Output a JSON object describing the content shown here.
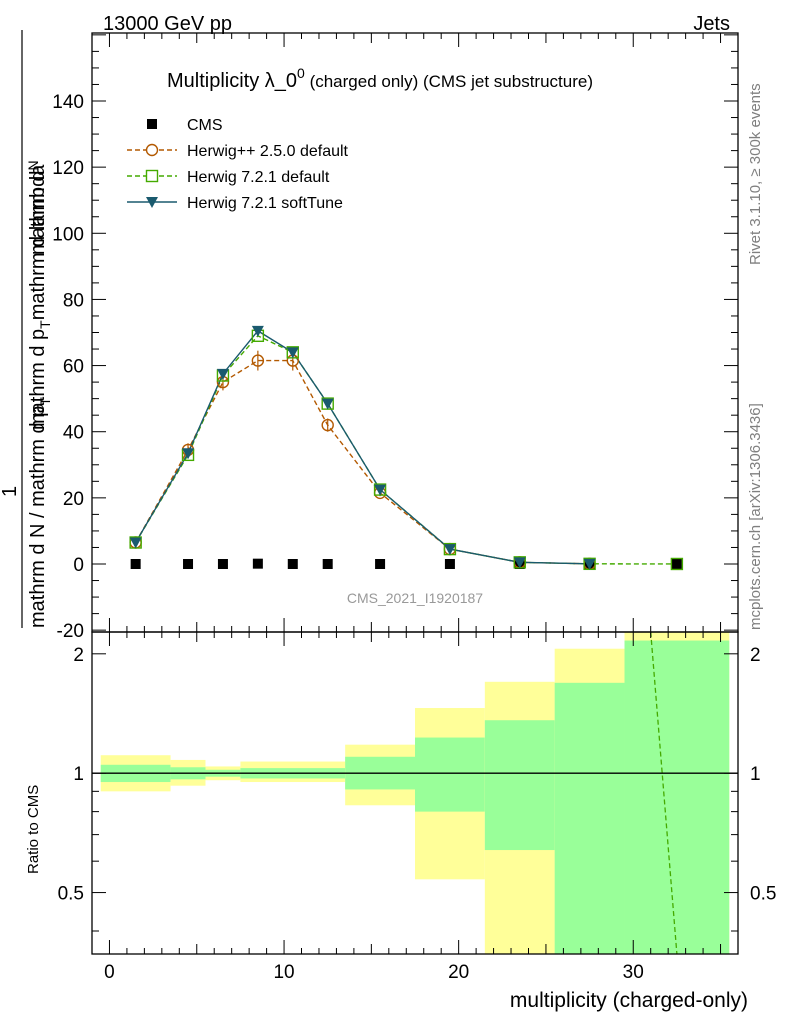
{
  "header": {
    "left": "13000 GeV pp",
    "right": "Jets"
  },
  "side": {
    "rivet": "Rivet 3.1.10, ≥ 300k events",
    "mcplots": "mcplots.cern.ch [arXiv:1306.3436]"
  },
  "chart_data": {
    "type": "line",
    "title_main": "Multiplicity λ_0",
    "title_sup": "0",
    "title_small": " (charged only) (CMS jet substructure)",
    "analysis_id": "CMS_2021_I1920187",
    "ylabel_top": "mathrm d",
    "ylabel_top_tail": "N",
    "ylabel_mid": "mathrm d p",
    "ylabel_mid_sub": "T",
    "ylabel_mid_tail": "mathrm d lambda",
    "ylabel_one": "1",
    "ylabel_bottom": "mathrm d N / mathrm d p",
    "ylabel_bottom_sub": "T",
    "ratio_ylabel": "Ratio to CMS",
    "xlabel": "multiplicity (charged-only)",
    "xlim": [
      -1,
      36
    ],
    "ylim": [
      -20,
      160
    ],
    "ratio_ylim": [
      0.35,
      2.27
    ],
    "x_ticks": [
      0,
      10,
      20,
      30
    ],
    "y_ticks": [
      -20,
      0,
      20,
      40,
      60,
      80,
      100,
      120,
      140
    ],
    "ratio_ticks": [
      0.5,
      1,
      2
    ],
    "series": [
      {
        "name": "CMS",
        "style": "data",
        "color": "#000000",
        "x": [
          1.5,
          4.5,
          6.5,
          8.5,
          10.5,
          12.5,
          15.5,
          19.5,
          23.5,
          27.5,
          32.5
        ],
        "y": [
          0,
          0,
          0,
          0.1,
          0,
          0,
          0,
          0,
          0,
          0,
          0
        ]
      },
      {
        "name": "Herwig++ 2.5.0 default",
        "style": "circle-dashed",
        "color": "#b35900",
        "x": [
          1.5,
          4.5,
          6.5,
          8.5,
          10.5,
          12.5,
          15.5,
          19.5,
          23.5,
          27.5
        ],
        "y": [
          6.5,
          34.5,
          55,
          61.5,
          61.5,
          42,
          21.5,
          4.5,
          0.5,
          0.05
        ],
        "err": [
          0.5,
          2.0,
          2.5,
          3.0,
          3.0,
          2.0,
          1.0,
          0.5,
          0.1,
          0.05
        ]
      },
      {
        "name": "Herwig 7.2.1 default",
        "style": "square-dashed",
        "color": "#44aa00",
        "x": [
          1.5,
          4.5,
          6.5,
          8.5,
          10.5,
          12.5,
          15.5,
          19.5,
          23.5,
          27.5,
          32.5
        ],
        "y": [
          6.5,
          33,
          57,
          69,
          64,
          48.5,
          22.5,
          4.5,
          0.5,
          0.05,
          0.01
        ]
      },
      {
        "name": "Herwig 7.2.1 softTune",
        "style": "triangle-solid",
        "color": "#1a5a6e",
        "x": [
          1.5,
          4.5,
          6.5,
          8.5,
          10.5,
          12.5,
          15.5,
          19.5,
          23.5,
          27.5
        ],
        "y": [
          6.5,
          33.5,
          57.5,
          70.5,
          64,
          48.5,
          22.5,
          4.5,
          0.5,
          0.05
        ]
      }
    ],
    "ratio_bands": [
      {
        "x0": -0.5,
        "x1": 3.5,
        "in_lo": 0.95,
        "in_hi": 1.05,
        "out_lo": 0.9,
        "out_hi": 1.11
      },
      {
        "x0": 3.5,
        "x1": 5.5,
        "in_lo": 0.965,
        "in_hi": 1.035,
        "out_lo": 0.93,
        "out_hi": 1.08
      },
      {
        "x0": 5.5,
        "x1": 7.5,
        "in_lo": 0.98,
        "in_hi": 1.02,
        "out_lo": 0.96,
        "out_hi": 1.04
      },
      {
        "x0": 7.5,
        "x1": 13.5,
        "in_lo": 0.97,
        "in_hi": 1.03,
        "out_lo": 0.95,
        "out_hi": 1.07
      },
      {
        "x0": 13.5,
        "x1": 17.5,
        "in_lo": 0.91,
        "in_hi": 1.1,
        "out_lo": 0.83,
        "out_hi": 1.18
      },
      {
        "x0": 17.5,
        "x1": 21.5,
        "in_lo": 0.8,
        "in_hi": 1.23,
        "out_lo": 0.54,
        "out_hi": 1.46
      },
      {
        "x0": 21.5,
        "x1": 25.5,
        "in_lo": 0.64,
        "in_hi": 1.36,
        "out_lo": 0.3,
        "out_hi": 1.7
      },
      {
        "x0": 25.5,
        "x1": 29.5,
        "in_lo": 0.3,
        "in_hi": 1.69,
        "out_lo": 0.3,
        "out_hi": 2.06
      },
      {
        "x0": 29.5,
        "x1": 35.5,
        "in_lo": 0.3,
        "in_hi": 2.16,
        "out_lo": 0.3,
        "out_hi": 2.4
      }
    ],
    "ratio_line": {
      "name": "Herwig 7.2.1 default",
      "color": "#44aa00",
      "x": [
        31.0,
        32.5
      ],
      "y": [
        2.27,
        0.35
      ]
    }
  }
}
